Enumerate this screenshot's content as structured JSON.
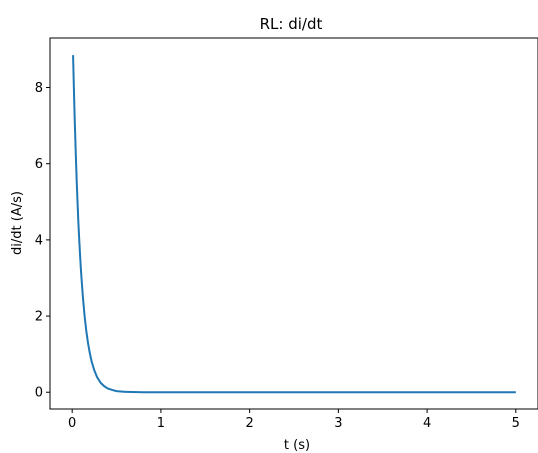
{
  "chart_data": {
    "type": "line",
    "title": "RL: di/dt",
    "xlabel": "t (s)",
    "ylabel": "di/dt (A/s)",
    "xlim": [
      -0.25,
      5.25
    ],
    "ylim": [
      -0.44,
      9.3
    ],
    "xticks": [
      0,
      1,
      2,
      3,
      4,
      5
    ],
    "yticks": [
      0,
      2,
      4,
      6,
      8
    ],
    "xtick_labels": [
      "0",
      "1",
      "2",
      "3",
      "4",
      "5"
    ],
    "ytick_labels": [
      "0",
      "2",
      "4",
      "6",
      "8"
    ],
    "grid": false,
    "legend": "none",
    "series": [
      {
        "color": "#1f77b4",
        "x": [
          0.01,
          0.02,
          0.03,
          0.04,
          0.05,
          0.06,
          0.07,
          0.08,
          0.09,
          0.1,
          0.12,
          0.14,
          0.16,
          0.18,
          0.2,
          0.22,
          0.25,
          0.28,
          0.32,
          0.36,
          0.4,
          0.45,
          0.5,
          0.6,
          0.8,
          1.0,
          1.5,
          2.0,
          2.5,
          3.0,
          3.5,
          4.0,
          4.5,
          5.0
        ],
        "y": [
          8.85,
          7.9,
          7.05,
          6.3,
          5.6,
          5.0,
          4.45,
          3.98,
          3.55,
          3.16,
          2.52,
          2.0,
          1.59,
          1.27,
          1.01,
          0.8,
          0.57,
          0.4,
          0.25,
          0.16,
          0.1,
          0.06,
          0.03,
          0.01,
          0.0,
          0.0,
          0.0,
          0.0,
          0.0,
          0.0,
          0.0,
          0.0,
          0.0,
          0.0
        ]
      }
    ]
  }
}
